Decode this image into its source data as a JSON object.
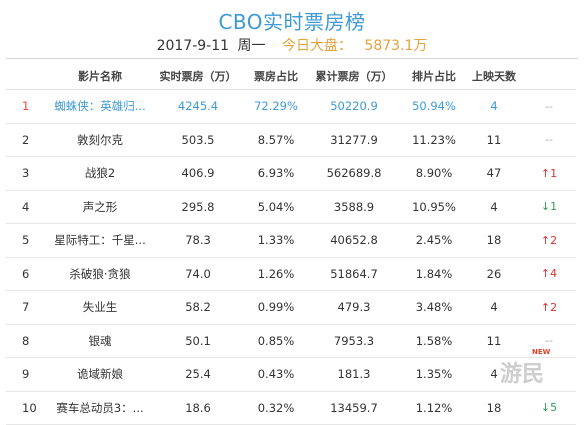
{
  "header": {
    "title": "CBO实时票房榜",
    "date": "2017-9-11",
    "weekday": "周一",
    "total_label": "今日大盘：",
    "total_value": "5873.1万"
  },
  "table": {
    "columns": [
      "影片名称",
      "实时票房（万）",
      "票房占比",
      "累计票房（万）",
      "排片占比",
      "上映天数",
      ""
    ],
    "rows": [
      {
        "rank": "1",
        "name": "蜘蛛侠：英雄归...",
        "realtime": "4245.4",
        "share": "72.29%",
        "total": "50220.9",
        "schedule": "50.94%",
        "days": "4",
        "trend": "--",
        "dir": "flat"
      },
      {
        "rank": "2",
        "name": "敦刻尔克",
        "realtime": "503.5",
        "share": "8.57%",
        "total": "31277.9",
        "schedule": "11.23%",
        "days": "11",
        "trend": "--",
        "dir": "flat"
      },
      {
        "rank": "3",
        "name": "战狼2",
        "realtime": "406.9",
        "share": "6.93%",
        "total": "562689.8",
        "schedule": "8.90%",
        "days": "47",
        "trend": "↑1",
        "dir": "up"
      },
      {
        "rank": "4",
        "name": "声之形",
        "realtime": "295.8",
        "share": "5.04%",
        "total": "3588.9",
        "schedule": "10.95%",
        "days": "4",
        "trend": "↓1",
        "dir": "down"
      },
      {
        "rank": "5",
        "name": "星际特工：千星...",
        "realtime": "78.3",
        "share": "1.33%",
        "total": "40652.8",
        "schedule": "2.45%",
        "days": "18",
        "trend": "↑2",
        "dir": "up"
      },
      {
        "rank": "6",
        "name": "杀破狼·贪狼",
        "realtime": "74.0",
        "share": "1.26%",
        "total": "51864.7",
        "schedule": "1.84%",
        "days": "26",
        "trend": "↑4",
        "dir": "up"
      },
      {
        "rank": "7",
        "name": "失业生",
        "realtime": "58.2",
        "share": "0.99%",
        "total": "479.3",
        "schedule": "3.48%",
        "days": "4",
        "trend": "↑2",
        "dir": "up"
      },
      {
        "rank": "8",
        "name": "银魂",
        "realtime": "50.1",
        "share": "0.85%",
        "total": "7953.3",
        "schedule": "1.58%",
        "days": "11",
        "trend": "--",
        "dir": "flat"
      },
      {
        "rank": "9",
        "name": "诡域新娘",
        "realtime": "25.4",
        "share": "0.43%",
        "total": "181.3",
        "schedule": "1.35%",
        "days": "4",
        "trend": "",
        "dir": "flat"
      },
      {
        "rank": "10",
        "name": "赛车总动员3：...",
        "realtime": "18.6",
        "share": "0.32%",
        "total": "13459.7",
        "schedule": "1.12%",
        "days": "18",
        "trend": "↓5",
        "dir": "down"
      }
    ]
  },
  "badge": {
    "new_label": "NEW"
  },
  "watermark": {
    "text": "游民"
  },
  "colors": {
    "accent": "#3d9ad6",
    "highlight": "#e6a23c",
    "up": "#d8322f",
    "down": "#2e9e53"
  }
}
